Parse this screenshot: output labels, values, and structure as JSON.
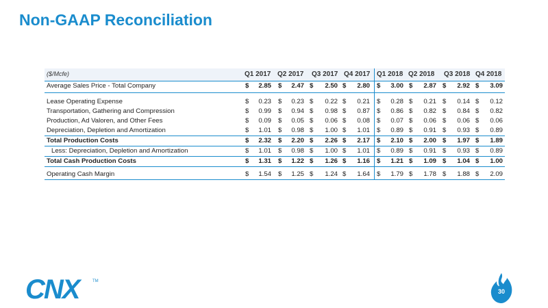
{
  "title": "Non-GAAP Reconciliation",
  "page_number": "30",
  "logo_text": "CNX",
  "colors": {
    "accent": "#1a8ccd"
  },
  "table": {
    "unit": "($/Mcfe)",
    "columns": [
      "Q1 2017",
      "Q2 2017",
      "Q3 2017",
      "Q4 2017",
      "Q1 2018",
      "Q2 2018",
      "Q3 2018",
      "Q4 2018"
    ],
    "rows": [
      {
        "label": "Average Sales Price - Total Company",
        "bold": true,
        "values": [
          "2.85",
          "2.47",
          "2.50",
          "2.80",
          "3.00",
          "2.87",
          "2.92",
          "3.09"
        ]
      },
      {
        "label": "Lease Operating Expense",
        "bold": false,
        "values": [
          "0.23",
          "0.23",
          "0.22",
          "0.21",
          "0.28",
          "0.21",
          "0.14",
          "0.12"
        ]
      },
      {
        "label": "Transportation, Gathering and Compression",
        "bold": false,
        "values": [
          "0.99",
          "0.94",
          "0.98",
          "0.87",
          "0.86",
          "0.82",
          "0.84",
          "0.82"
        ]
      },
      {
        "label": "Production, Ad Valoren, and Other Fees",
        "bold": false,
        "values": [
          "0.09",
          "0.05",
          "0.06",
          "0.08",
          "0.07",
          "0.06",
          "0.06",
          "0.06"
        ]
      },
      {
        "label": "Depreciation, Depletion and Amortization",
        "bold": false,
        "values": [
          "1.01",
          "0.98",
          "1.00",
          "1.01",
          "0.89",
          "0.91",
          "0.93",
          "0.89"
        ]
      },
      {
        "label": "Total Production Costs",
        "bold": true,
        "values": [
          "2.32",
          "2.20",
          "2.26",
          "2.17",
          "2.10",
          "2.00",
          "1.97",
          "1.89"
        ]
      },
      {
        "label": "Less: Depreciation, Depletion and Amortization",
        "bold": false,
        "values": [
          "1.01",
          "0.98",
          "1.00",
          "1.01",
          "0.89",
          "0.91",
          "0.93",
          "0.89"
        ]
      },
      {
        "label": "Total Cash Production Costs",
        "bold": true,
        "values": [
          "1.31",
          "1.22",
          "1.26",
          "1.16",
          "1.21",
          "1.09",
          "1.04",
          "1.00"
        ]
      },
      {
        "label": "Operating Cash Margin",
        "bold": false,
        "values": [
          "1.54",
          "1.25",
          "1.24",
          "1.64",
          "1.79",
          "1.78",
          "1.88",
          "2.09"
        ]
      }
    ]
  }
}
